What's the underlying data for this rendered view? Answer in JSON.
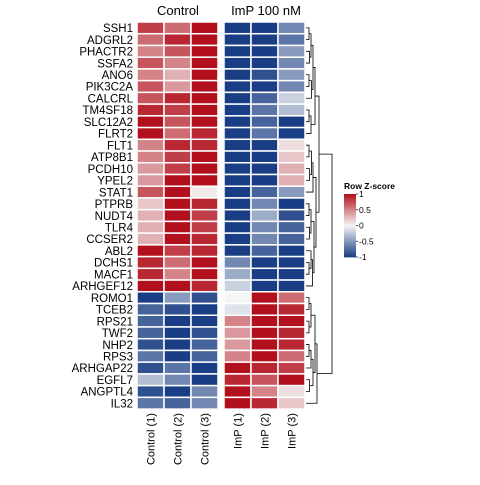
{
  "chart_data": {
    "type": "heatmap",
    "title": "",
    "xlabel": "",
    "ylabel": "",
    "group_labels": [
      "Control",
      "ImP 100 nM"
    ],
    "columns": [
      "Control (1)",
      "Control (2)",
      "Control (3)",
      "ImP (1)",
      "ImP (2)",
      "ImP (3)"
    ],
    "rows": [
      "SSH1",
      "ADGRL2",
      "PHACTR2",
      "SSFA2",
      "ANO6",
      "PIK3C2A",
      "CALCRL",
      "TM4SF18",
      "SLC12A2",
      "FLRT2",
      "FLT1",
      "ATP8B1",
      "PCDH10",
      "YPEL2",
      "STAT1",
      "PTPRB",
      "NUDT4",
      "TLR4",
      "CCSER2",
      "ABL2",
      "DCHS1",
      "MACF1",
      "ARHGEF12",
      "ROMO1",
      "TCEB2",
      "RPS21",
      "TWF2",
      "NHP2",
      "RPS3",
      "ARHGAP22",
      "EGFL7",
      "ANGPTL4",
      "IL32"
    ],
    "values": [
      [
        0.8,
        0.6,
        1.0,
        -1.0,
        -1.0,
        -0.6
      ],
      [
        0.6,
        0.9,
        1.0,
        -1.0,
        -1.1,
        -0.7
      ],
      [
        0.5,
        0.7,
        1.0,
        -1.0,
        -1.0,
        -0.5
      ],
      [
        0.7,
        0.5,
        1.0,
        -1.0,
        -1.0,
        -0.6
      ],
      [
        0.5,
        0.3,
        1.0,
        -1.0,
        -0.9,
        -0.5
      ],
      [
        0.7,
        0.4,
        1.0,
        -1.0,
        -1.0,
        -0.6
      ],
      [
        0.7,
        0.9,
        1.0,
        -1.0,
        -0.8,
        -0.2
      ],
      [
        0.9,
        0.8,
        1.0,
        -1.0,
        -0.7,
        -0.3
      ],
      [
        1.0,
        0.7,
        1.0,
        -1.0,
        -0.8,
        -1.0
      ],
      [
        1.0,
        0.6,
        0.9,
        -1.0,
        -0.7,
        -1.0
      ],
      [
        0.5,
        0.9,
        0.9,
        -1.0,
        -1.0,
        0.1
      ],
      [
        0.5,
        0.8,
        1.0,
        -1.0,
        -1.0,
        0.2
      ],
      [
        0.4,
        0.8,
        1.0,
        -1.0,
        -1.0,
        0.3
      ],
      [
        0.4,
        1.0,
        1.0,
        -1.0,
        -1.0,
        0.3
      ],
      [
        0.7,
        1.0,
        0.05,
        -1.0,
        -0.8,
        -0.5
      ],
      [
        0.2,
        1.0,
        0.9,
        -1.0,
        -0.6,
        -1.0
      ],
      [
        0.3,
        1.0,
        0.8,
        -1.0,
        -0.4,
        -0.9
      ],
      [
        0.3,
        1.0,
        0.8,
        -1.0,
        -0.6,
        -0.8
      ],
      [
        0.3,
        1.0,
        0.9,
        -1.0,
        -0.6,
        -0.8
      ],
      [
        1.0,
        0.8,
        0.9,
        -1.0,
        -0.8,
        -1.0
      ],
      [
        0.9,
        0.6,
        1.0,
        -0.6,
        -1.0,
        -1.0
      ],
      [
        0.9,
        0.5,
        1.0,
        -0.4,
        -1.0,
        -1.0
      ],
      [
        1.0,
        1.0,
        0.9,
        -0.2,
        -1.0,
        -1.0
      ],
      [
        -1.0,
        -0.5,
        -0.9,
        0.0,
        1.0,
        0.6
      ],
      [
        -0.8,
        -0.9,
        -1.0,
        -0.1,
        1.0,
        0.9
      ],
      [
        -0.8,
        -1.0,
        -1.0,
        0.5,
        1.0,
        1.0
      ],
      [
        -0.8,
        -1.0,
        -0.9,
        0.4,
        1.0,
        0.9
      ],
      [
        -0.9,
        -1.0,
        -0.8,
        0.4,
        1.0,
        0.9
      ],
      [
        -0.7,
        -1.0,
        -0.8,
        0.5,
        1.0,
        0.6
      ],
      [
        -0.9,
        -0.7,
        -1.0,
        1.0,
        0.9,
        0.8
      ],
      [
        -0.3,
        -0.6,
        -1.0,
        0.9,
        0.7,
        1.0
      ],
      [
        -0.9,
        -1.0,
        -0.6,
        1.0,
        0.5,
        0.1
      ],
      [
        -0.7,
        -0.8,
        -0.6,
        1.0,
        0.9,
        0.2
      ]
    ],
    "legend": {
      "title": "Row Z-score",
      "ticks": [
        1,
        0.5,
        0,
        -0.5,
        -1
      ],
      "tick_labels": [
        "1",
        "0.5",
        "0",
        "-0.5",
        "-1"
      ],
      "placement": "right"
    },
    "colors": {
      "low": "#1a3e85",
      "mid": "#f5f5f5",
      "high": "#b2101c"
    },
    "clustering": "rows clustered, dendrogram on right",
    "cell_border": "#ffffff"
  }
}
